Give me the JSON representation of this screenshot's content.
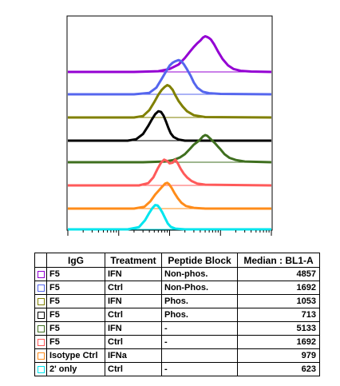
{
  "chart_data": {
    "type": "histogram-overlay",
    "x_scale": "log",
    "xlim": [
      10,
      100000
    ],
    "series": [
      {
        "color": "#9400d3",
        "median": 4857,
        "values": [
          [
            10,
            0
          ],
          [
            200,
            0
          ],
          [
            600,
            0.02
          ],
          [
            1000,
            0.08
          ],
          [
            1500,
            0.2
          ],
          [
            2000,
            0.38
          ],
          [
            2500,
            0.55
          ],
          [
            3000,
            0.68
          ],
          [
            3500,
            0.78
          ],
          [
            4000,
            0.85
          ],
          [
            4500,
            0.93
          ],
          [
            5000,
            0.97
          ],
          [
            5500,
            0.95
          ],
          [
            6000,
            0.92
          ],
          [
            6500,
            0.88
          ],
          [
            7500,
            0.75
          ],
          [
            9000,
            0.55
          ],
          [
            11000,
            0.35
          ],
          [
            14000,
            0.18
          ],
          [
            18000,
            0.08
          ],
          [
            25000,
            0.03
          ],
          [
            40000,
            0.01
          ],
          [
            100000,
            0
          ]
        ]
      },
      {
        "color": "#5566ee",
        "median": 1692,
        "values": [
          [
            10,
            0
          ],
          [
            200,
            0
          ],
          [
            400,
            0.04
          ],
          [
            550,
            0.18
          ],
          [
            700,
            0.42
          ],
          [
            850,
            0.62
          ],
          [
            1000,
            0.78
          ],
          [
            1150,
            0.86
          ],
          [
            1300,
            0.9
          ],
          [
            1500,
            0.93
          ],
          [
            1700,
            0.9
          ],
          [
            1900,
            0.82
          ],
          [
            2200,
            0.68
          ],
          [
            2600,
            0.5
          ],
          [
            3000,
            0.32
          ],
          [
            3500,
            0.18
          ],
          [
            4500,
            0.07
          ],
          [
            6000,
            0.03
          ],
          [
            10000,
            0.01
          ],
          [
            100000,
            0
          ]
        ]
      },
      {
        "color": "#808000",
        "median": 1053,
        "values": [
          [
            10,
            0
          ],
          [
            200,
            0
          ],
          [
            300,
            0.04
          ],
          [
            400,
            0.2
          ],
          [
            500,
            0.42
          ],
          [
            600,
            0.62
          ],
          [
            700,
            0.75
          ],
          [
            800,
            0.83
          ],
          [
            900,
            0.88
          ],
          [
            1000,
            0.85
          ],
          [
            1150,
            0.75
          ],
          [
            1300,
            0.6
          ],
          [
            1500,
            0.45
          ],
          [
            1800,
            0.3
          ],
          [
            2200,
            0.17
          ],
          [
            3000,
            0.06
          ],
          [
            5000,
            0.01
          ],
          [
            100000,
            0
          ]
        ]
      },
      {
        "color": "#000000",
        "median": 713,
        "values": [
          [
            10,
            0
          ],
          [
            150,
            0
          ],
          [
            220,
            0.04
          ],
          [
            300,
            0.18
          ],
          [
            380,
            0.4
          ],
          [
            450,
            0.58
          ],
          [
            520,
            0.72
          ],
          [
            600,
            0.8
          ],
          [
            680,
            0.78
          ],
          [
            760,
            0.68
          ],
          [
            850,
            0.52
          ],
          [
            950,
            0.34
          ],
          [
            1050,
            0.2
          ],
          [
            1200,
            0.1
          ],
          [
            1500,
            0.03
          ],
          [
            2000,
            0
          ],
          [
            100000,
            0
          ]
        ]
      },
      {
        "color": "#3f6f1f",
        "median": 5133,
        "values": [
          [
            10,
            0
          ],
          [
            300,
            0
          ],
          [
            800,
            0.02
          ],
          [
            1200,
            0.06
          ],
          [
            1600,
            0.13
          ],
          [
            2000,
            0.22
          ],
          [
            2500,
            0.36
          ],
          [
            3000,
            0.48
          ],
          [
            3500,
            0.55
          ],
          [
            4000,
            0.62
          ],
          [
            4500,
            0.7
          ],
          [
            5000,
            0.74
          ],
          [
            5500,
            0.72
          ],
          [
            6000,
            0.67
          ],
          [
            7000,
            0.58
          ],
          [
            8000,
            0.5
          ],
          [
            9000,
            0.42
          ],
          [
            10000,
            0.35
          ],
          [
            12000,
            0.22
          ],
          [
            15000,
            0.12
          ],
          [
            20000,
            0.06
          ],
          [
            30000,
            0.02
          ],
          [
            100000,
            0
          ]
        ]
      },
      {
        "color": "#ff5a5a",
        "median": 1692,
        "values": [
          [
            10,
            0
          ],
          [
            250,
            0
          ],
          [
            380,
            0.06
          ],
          [
            480,
            0.22
          ],
          [
            580,
            0.45
          ],
          [
            680,
            0.62
          ],
          [
            780,
            0.7
          ],
          [
            900,
            0.66
          ],
          [
            1000,
            0.6
          ],
          [
            1150,
            0.62
          ],
          [
            1300,
            0.7
          ],
          [
            1450,
            0.6
          ],
          [
            1650,
            0.45
          ],
          [
            1900,
            0.32
          ],
          [
            2200,
            0.22
          ],
          [
            2700,
            0.12
          ],
          [
            3500,
            0.05
          ],
          [
            5000,
            0.02
          ],
          [
            100000,
            0
          ]
        ]
      },
      {
        "color": "#ff8c1a",
        "median": 979,
        "values": [
          [
            10,
            0
          ],
          [
            200,
            0
          ],
          [
            320,
            0.05
          ],
          [
            420,
            0.2
          ],
          [
            520,
            0.38
          ],
          [
            620,
            0.5
          ],
          [
            720,
            0.6
          ],
          [
            820,
            0.68
          ],
          [
            900,
            0.7
          ],
          [
            980,
            0.66
          ],
          [
            1100,
            0.56
          ],
          [
            1250,
            0.42
          ],
          [
            1450,
            0.28
          ],
          [
            1700,
            0.16
          ],
          [
            2100,
            0.07
          ],
          [
            3000,
            0.02
          ],
          [
            5000,
            0
          ],
          [
            100000,
            0
          ]
        ]
      },
      {
        "color": "#00e5ee",
        "median": 623,
        "values": [
          [
            10,
            0
          ],
          [
            150,
            0
          ],
          [
            250,
            0.06
          ],
          [
            330,
            0.25
          ],
          [
            400,
            0.45
          ],
          [
            460,
            0.58
          ],
          [
            520,
            0.66
          ],
          [
            580,
            0.65
          ],
          [
            640,
            0.58
          ],
          [
            720,
            0.46
          ],
          [
            820,
            0.3
          ],
          [
            920,
            0.16
          ],
          [
            1050,
            0.07
          ],
          [
            1300,
            0.02
          ],
          [
            2000,
            0
          ],
          [
            100000,
            0
          ]
        ]
      }
    ]
  },
  "table": {
    "headers": [
      "IgG",
      "Treatment",
      "Peptide Block",
      "Median : BL1-A"
    ],
    "rows": [
      {
        "color": "#9400d3",
        "igg": "F5",
        "treatment": "IFN",
        "peptide": "Non-phos.",
        "median": "4857"
      },
      {
        "color": "#5566ee",
        "igg": "F5",
        "treatment": "Ctrl",
        "peptide": "Non-Phos.",
        "median": "1692"
      },
      {
        "color": "#808000",
        "igg": "F5",
        "treatment": "IFN",
        "peptide": "Phos.",
        "median": "1053"
      },
      {
        "color": "#000000",
        "igg": "F5",
        "treatment": "Ctrl",
        "peptide": "Phos.",
        "median": "713"
      },
      {
        "color": "#3f6f1f",
        "igg": "F5",
        "treatment": "IFN",
        "peptide": "-",
        "median": "5133"
      },
      {
        "color": "#ff5a5a",
        "igg": "F5",
        "treatment": "Ctrl",
        "peptide": "-",
        "median": "1692"
      },
      {
        "color": "#ff8c1a",
        "igg": "Isotype Ctrl",
        "treatment": "IFNa",
        "peptide": "",
        "median": "979"
      },
      {
        "color": "#00e5ee",
        "igg": "2' only",
        "treatment": "Ctrl",
        "peptide": "-",
        "median": "623"
      }
    ]
  }
}
